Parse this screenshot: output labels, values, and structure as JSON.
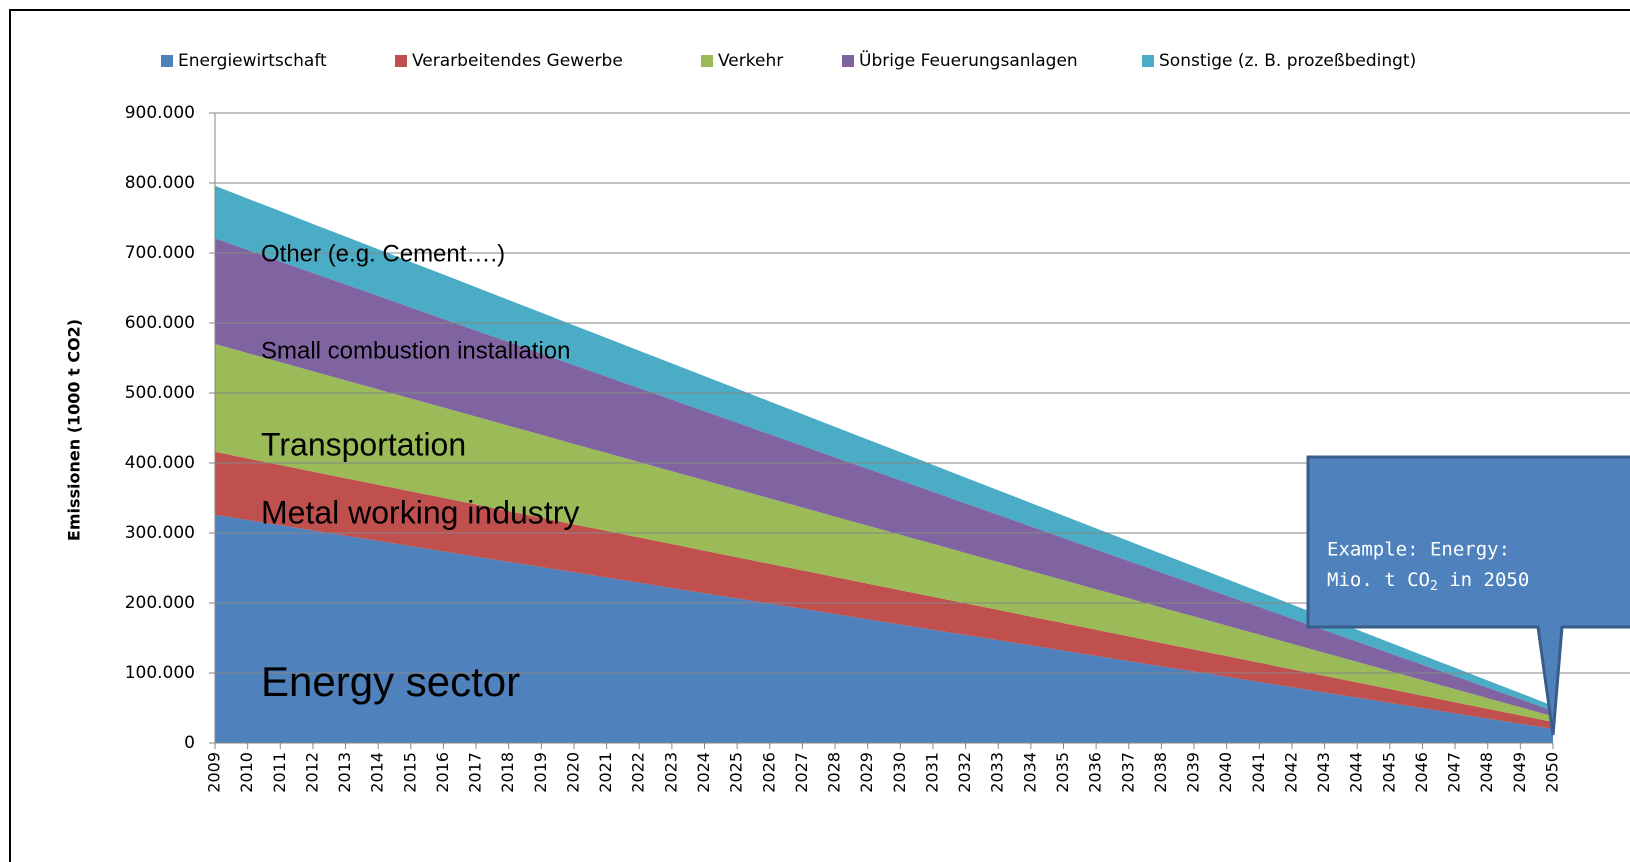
{
  "chart_data": {
    "type": "stacked_area",
    "y_label": "Emissionen (1000 t CO2)",
    "categories": [
      "2009",
      "2010",
      "2011",
      "2012",
      "2013",
      "2014",
      "2015",
      "2016",
      "2017",
      "2018",
      "2019",
      "2020",
      "2021",
      "2022",
      "2023",
      "2024",
      "2025",
      "2026",
      "2027",
      "2028",
      "2029",
      "2030",
      "2031",
      "2032",
      "2033",
      "2034",
      "2035",
      "2036",
      "2037",
      "2038",
      "2039",
      "2040",
      "2041",
      "2042",
      "2043",
      "2044",
      "2045",
      "2046",
      "2047",
      "2048",
      "2049",
      "2050"
    ],
    "series": [
      {
        "name": "Energiewirtschaft",
        "color": "#4F81BD",
        "values": [
          326000,
          318500,
          311100,
          303600,
          296100,
          288700,
          281200,
          273800,
          266300,
          258800,
          251400,
          243900,
          236400,
          229000,
          221500,
          214000,
          206600,
          199100,
          191700,
          184200,
          176700,
          169300,
          161800,
          154300,
          146900,
          139400,
          131900,
          124500,
          117000,
          109500,
          102100,
          94600,
          87200,
          79700,
          72200,
          64800,
          57300,
          49800,
          42400,
          34900,
          27500,
          20000
        ]
      },
      {
        "name": "Verarbeitendes Gewerbe",
        "color": "#C0504D",
        "values": [
          90000,
          88000,
          86100,
          84100,
          82200,
          80200,
          78300,
          76300,
          74400,
          72400,
          70500,
          68500,
          66600,
          64600,
          62700,
          60700,
          58800,
          56800,
          54900,
          52900,
          51000,
          49000,
          47100,
          45100,
          43200,
          41200,
          39300,
          37300,
          35400,
          33400,
          31500,
          29500,
          27600,
          25600,
          23700,
          21700,
          19800,
          17800,
          15900,
          13900,
          12000,
          10000
        ]
      },
      {
        "name": "Verkehr",
        "color": "#9BBB59",
        "values": [
          154000,
          150400,
          146900,
          143300,
          139800,
          136200,
          132600,
          129100,
          125500,
          122000,
          118400,
          114800,
          111300,
          107700,
          104100,
          100600,
          97000,
          93500,
          89900,
          86300,
          82800,
          79200,
          75700,
          72100,
          68500,
          65000,
          61400,
          57800,
          54300,
          50700,
          47200,
          43600,
          40000,
          36500,
          32900,
          29400,
          25800,
          22200,
          18700,
          15100,
          11600,
          8000
        ]
      },
      {
        "name": "Übrige Feuerungsanlagen",
        "color": "#8064A2",
        "values": [
          151000,
          147500,
          144000,
          140500,
          137000,
          133600,
          130100,
          126600,
          123100,
          119600,
          116100,
          112600,
          109100,
          105700,
          102200,
          98700,
          95200,
          91700,
          88200,
          84700,
          81200,
          77800,
          74300,
          70800,
          67300,
          63800,
          60300,
          56800,
          53300,
          49900,
          46400,
          42900,
          39400,
          35900,
          32400,
          28900,
          25400,
          22000,
          18500,
          15000,
          11500,
          8000
        ]
      },
      {
        "name": "Sonstige (z. B. prozeßbedingt)",
        "color": "#4BACC6",
        "values": [
          75000,
          73300,
          71700,
          70000,
          68400,
          66700,
          65000,
          63400,
          61700,
          60100,
          58400,
          56800,
          55100,
          53400,
          51800,
          50100,
          48500,
          46800,
          45100,
          43500,
          41800,
          40200,
          38500,
          36800,
          35200,
          33500,
          31900,
          30200,
          28500,
          26900,
          25200,
          23600,
          21900,
          20200,
          18600,
          16900,
          15300,
          13600,
          12000,
          10300,
          8700,
          7000
        ]
      }
    ],
    "ylim": [
      0,
      900000
    ],
    "yticks": [
      0,
      {
        "value": 100000,
        "label": "100.000"
      },
      {
        "value": 200000,
        "label": "200.000"
      },
      {
        "value": 300000,
        "label": "300.000"
      },
      {
        "value": 400000,
        "label": "400.000"
      },
      {
        "value": 500000,
        "label": "500.000"
      },
      {
        "value": 600000,
        "label": "600.000"
      },
      {
        "value": 700000,
        "label": "700.000"
      },
      {
        "value": 800000,
        "label": "800.000"
      },
      {
        "value": 900000,
        "label": "900.000"
      }
    ],
    "grid": true,
    "legend": "top",
    "annotations": [
      "Other (e.g. Cement….)",
      "Small combustion installation",
      "Transportation",
      "Metal working industry",
      "Energy sector"
    ],
    "callout": {
      "line1": "Example: Energy:",
      "line2": [
        "Mio. t CO",
        "2",
        " in 2050"
      ]
    }
  }
}
